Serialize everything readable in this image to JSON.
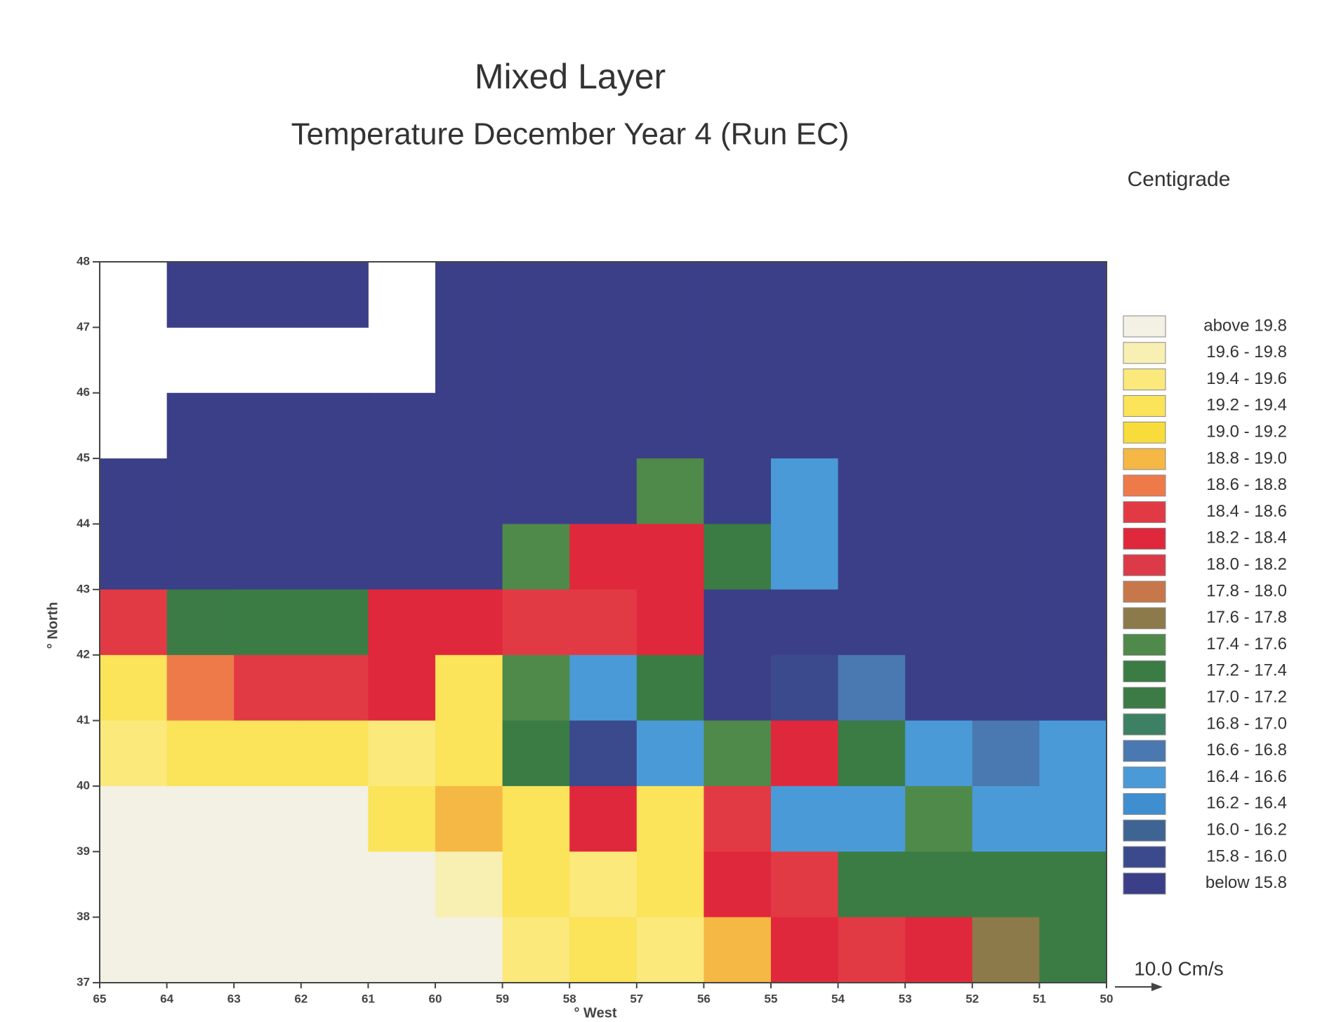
{
  "chart_data": {
    "type": "heatmap",
    "title": "Mixed Layer",
    "subtitle": "Temperature December  Year  4 (Run EC)",
    "unit_label": "Centigrade",
    "x_label": "° West",
    "y_label": "° North",
    "reference_vector_label": "10.0 Cm/s",
    "xlim": [
      65,
      50
    ],
    "ylim": [
      37,
      48
    ],
    "xticks": [
      65,
      64,
      63,
      62,
      61,
      60,
      59,
      58,
      57,
      56,
      55,
      54,
      53,
      52,
      51,
      50
    ],
    "yticks": [
      37,
      38,
      39,
      40,
      41,
      42,
      43,
      44,
      45,
      46,
      47,
      48
    ],
    "x_centers": [
      64.5,
      63.5,
      62.5,
      61.5,
      60.5,
      59.5,
      58.5,
      57.5,
      56.5,
      55.5,
      54.5,
      53.5,
      52.5,
      51.5,
      50.5
    ],
    "y_centers": [
      47.5,
      46.5,
      45.5,
      44.5,
      43.5,
      42.5,
      41.5,
      40.5,
      39.5,
      38.5,
      37.5
    ],
    "values": [
      [
        null,
        15.7,
        15.7,
        15.7,
        null,
        15.7,
        15.7,
        15.7,
        15.7,
        15.7,
        15.7,
        15.7,
        15.7,
        15.7,
        15.7
      ],
      [
        null,
        null,
        null,
        null,
        null,
        15.7,
        15.7,
        15.7,
        15.7,
        15.7,
        15.7,
        15.7,
        15.7,
        15.7,
        15.7
      ],
      [
        null,
        15.7,
        15.7,
        15.7,
        15.7,
        15.7,
        15.7,
        15.7,
        15.7,
        15.7,
        15.7,
        15.7,
        15.7,
        15.7,
        15.7
      ],
      [
        15.7,
        15.7,
        15.7,
        15.7,
        15.7,
        15.7,
        15.7,
        15.7,
        17.5,
        15.7,
        16.5,
        15.7,
        15.7,
        15.7,
        15.7
      ],
      [
        15.7,
        15.7,
        15.7,
        15.7,
        15.7,
        15.7,
        17.5,
        18.3,
        18.3,
        17.3,
        16.5,
        15.7,
        15.7,
        15.7,
        15.7
      ],
      [
        18.5,
        17.1,
        17.3,
        17.3,
        18.3,
        18.3,
        18.5,
        18.5,
        18.3,
        15.7,
        15.7,
        15.7,
        15.7,
        15.7,
        15.7
      ],
      [
        19.3,
        18.7,
        18.5,
        18.5,
        18.3,
        19.3,
        17.5,
        16.5,
        17.3,
        15.7,
        15.9,
        16.7,
        15.7,
        15.7,
        15.7
      ],
      [
        19.5,
        19.3,
        19.3,
        19.3,
        19.5,
        19.3,
        17.3,
        15.9,
        16.5,
        17.5,
        18.3,
        17.3,
        16.5,
        16.7,
        16.5
      ],
      [
        19.9,
        19.9,
        19.9,
        19.9,
        19.3,
        18.9,
        19.3,
        18.3,
        19.3,
        18.5,
        16.5,
        16.5,
        17.5,
        16.5,
        16.5
      ],
      [
        19.9,
        19.9,
        19.9,
        19.9,
        19.9,
        19.7,
        19.3,
        19.5,
        19.3,
        18.3,
        18.5,
        17.3,
        17.3,
        17.3,
        17.3
      ],
      [
        19.9,
        19.9,
        19.9,
        19.9,
        19.9,
        19.9,
        19.5,
        19.3,
        19.5,
        18.9,
        18.3,
        18.5,
        18.3,
        17.7,
        17.3
      ]
    ],
    "legend": [
      {
        "range": [
          19.8,
          null
        ],
        "label": "above  19.8",
        "color": "#f3f0e4"
      },
      {
        "range": [
          19.6,
          19.8
        ],
        "label": "19.6 - 19.8",
        "color": "#f8efb2"
      },
      {
        "range": [
          19.4,
          19.6
        ],
        "label": "19.4 - 19.6",
        "color": "#fbe97c"
      },
      {
        "range": [
          19.2,
          19.4
        ],
        "label": "19.2 - 19.4",
        "color": "#fbe35a"
      },
      {
        "range": [
          19.0,
          19.2
        ],
        "label": "19.0 - 19.2",
        "color": "#f7dc3c"
      },
      {
        "range": [
          18.8,
          19.0
        ],
        "label": "18.8 - 19.0",
        "color": "#f5b844"
      },
      {
        "range": [
          18.6,
          18.8
        ],
        "label": "18.6 - 18.8",
        "color": "#ee7a4a"
      },
      {
        "range": [
          18.4,
          18.6
        ],
        "label": "18.4 - 18.6",
        "color": "#e23a44"
      },
      {
        "range": [
          18.2,
          18.4
        ],
        "label": "18.2 - 18.4",
        "color": "#e0283c"
      },
      {
        "range": [
          18.0,
          18.2
        ],
        "label": "18.0 - 18.2",
        "color": "#dc3a48"
      },
      {
        "range": [
          17.8,
          18.0
        ],
        "label": "17.8 - 18.0",
        "color": "#c8774a"
      },
      {
        "range": [
          17.6,
          17.8
        ],
        "label": "17.6 - 17.8",
        "color": "#8c7a4a"
      },
      {
        "range": [
          17.4,
          17.6
        ],
        "label": "17.4 - 17.6",
        "color": "#4f8a4a"
      },
      {
        "range": [
          17.2,
          17.4
        ],
        "label": "17.2 - 17.4",
        "color": "#3a7c44"
      },
      {
        "range": [
          17.0,
          17.2
        ],
        "label": "17.0 - 17.2",
        "color": "#3c7a46"
      },
      {
        "range": [
          16.8,
          17.0
        ],
        "label": "16.8 - 17.0",
        "color": "#3e8064"
      },
      {
        "range": [
          16.6,
          16.8
        ],
        "label": "16.6 - 16.8",
        "color": "#4a78b0"
      },
      {
        "range": [
          16.4,
          16.6
        ],
        "label": "16.4 - 16.6",
        "color": "#4a9ad8"
      },
      {
        "range": [
          16.2,
          16.4
        ],
        "label": "16.2 - 16.4",
        "color": "#3f8ed0"
      },
      {
        "range": [
          16.0,
          16.2
        ],
        "label": "16.0 - 16.2",
        "color": "#3e6494"
      },
      {
        "range": [
          15.8,
          16.0
        ],
        "label": "15.8 - 16.0",
        "color": "#3a4a8c"
      },
      {
        "range": [
          null,
          15.8
        ],
        "label": "below  15.8",
        "color": "#3b3f88"
      }
    ]
  }
}
